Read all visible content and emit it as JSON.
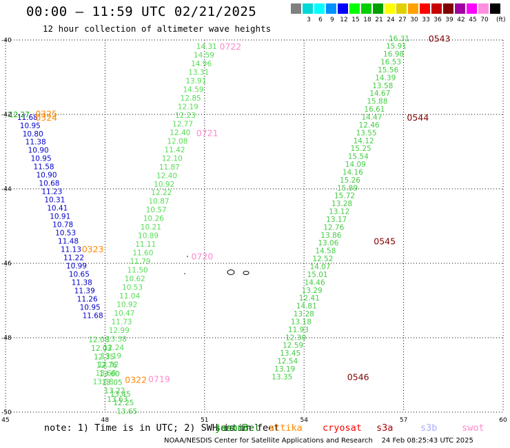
{
  "header": {
    "title": "00:00 – 11:59 UTC 02/21/2025",
    "subtitle": "12 hour collection of altimeter wave heights"
  },
  "color_scale": {
    "unit": "(ft)",
    "bins": [
      {
        "label": "",
        "color": "#808080"
      },
      {
        "label": "3",
        "color": "#00d8d8"
      },
      {
        "label": "6",
        "color": "#00ffff"
      },
      {
        "label": "9",
        "color": "#0090ff"
      },
      {
        "label": "12",
        "color": "#0000ff"
      },
      {
        "label": "15",
        "color": "#00ff00"
      },
      {
        "label": "18",
        "color": "#00d000"
      },
      {
        "label": "21",
        "color": "#00a000"
      },
      {
        "label": "24",
        "color": "#ffff00"
      },
      {
        "label": "27",
        "color": "#e0d000"
      },
      {
        "label": "30",
        "color": "#ffa000"
      },
      {
        "label": "33",
        "color": "#ff0000"
      },
      {
        "label": "36",
        "color": "#c80000"
      },
      {
        "label": "39",
        "color": "#800000"
      },
      {
        "label": "42",
        "color": "#a000a0"
      },
      {
        "label": "45",
        "color": "#ff00ff"
      },
      {
        "label": "70",
        "color": "#ff90e0"
      },
      {
        "label": "",
        "color": "#000000"
      }
    ]
  },
  "map": {
    "lon_ticks": [
      "45",
      "48",
      "51",
      "54",
      "57",
      "60"
    ],
    "lat_ticks": [
      "-40",
      "-42",
      "-44",
      "-46",
      "-48",
      "-50"
    ],
    "lon_range": [
      45,
      60
    ],
    "lat_range": [
      -40,
      -50
    ]
  },
  "tracks": [
    {
      "sat": "altika",
      "color": "#0000cc",
      "dir": "down",
      "start": [
        -42.07,
        45.35
      ],
      "step": [
        0.222,
        0.082
      ],
      "values": [
        "11.68",
        "10.95",
        "10.80",
        "11.38",
        "10.90",
        "10.95",
        "11.58",
        "10.90",
        "10.68",
        "11.23",
        "10.31",
        "10.41",
        "10.91",
        "10.78",
        "10.53",
        "11.48",
        "11.13",
        "11.22",
        "10.99",
        "10.65",
        "11.38",
        "11.39",
        "11.26",
        "10.95",
        "11.68"
      ]
    },
    {
      "sat": "altika",
      "color": "#44cc44",
      "dir": "down",
      "start": [
        -48.05,
        47.5
      ],
      "step": [
        0.228,
        0.08
      ],
      "values": [
        "12.08",
        "12.03",
        "12.35",
        "12.76",
        "13.60",
        "13.05",
        "13.22",
        "13.63"
      ]
    },
    {
      "sat": "altika",
      "color": "#44cc44",
      "dir": "down",
      "start": [
        -49.51,
        48.15
      ],
      "step": [
        0.23,
        0.1
      ],
      "values": [
        "13.45",
        "12.25",
        "13.65"
      ]
    },
    {
      "sat": "sentinel",
      "color": "#00aa00",
      "dir": "up",
      "start": [
        -42.0,
        45.1
      ],
      "step": [
        0,
        0
      ],
      "values": [
        "12.27"
      ]
    },
    {
      "sat": "swot",
      "color": "#55dd55",
      "dir": "up",
      "start": [
        -40.17,
        50.75
      ],
      "step": [
        0.231,
        -0.08
      ],
      "values": [
        "14.31",
        "14.59",
        "14.96",
        "13.31",
        "13.91",
        "14.59",
        "12.85",
        "12.19",
        "12.23",
        "12.77",
        "12.40",
        "12.08",
        "11.42",
        "12.10",
        "11.87",
        "12.40",
        "10.92",
        "12.22",
        "10.87",
        "10.57",
        "10.26",
        "10.21",
        "10.89",
        "11.11",
        "11.60",
        "11.79",
        "11.50",
        "10.62",
        "10.53",
        "11.04",
        "10.92",
        "10.47",
        "11.73",
        "12.99",
        "13.38",
        "12.24",
        "13.19",
        "12.32",
        "13.68",
        "13.58"
      ]
    },
    {
      "sat": "swot",
      "color": "#44cc44",
      "dir": "up",
      "start": [
        -39.95,
        56.55
      ],
      "step": [
        0.2115,
        -0.082
      ],
      "values": [
        "16.31",
        "15.91",
        "16.98",
        "16.53",
        "15.56",
        "14.39",
        "13.58",
        "14.67",
        "15.88",
        "16.61",
        "14.47",
        "12.46",
        "13.55",
        "14.12",
        "15.25",
        "15.54",
        "14.09",
        "14.16",
        "15.26",
        "15.89",
        "15.72",
        "13.28",
        "13.12",
        "13.17",
        "12.76",
        "13.86",
        "13.06",
        "14.58",
        "12.52",
        "14.07",
        "15.01",
        "14.46",
        "13.29",
        "12.41",
        "14.81",
        "13.28",
        "13.18",
        "11.93",
        "12.30",
        "12.59",
        "13.45",
        "12.54",
        "13.19",
        "13.35"
      ]
    }
  ],
  "time_labels": [
    {
      "text": "0722",
      "color": "#ff88cc",
      "lat": -40.17,
      "lon": 51.45
    },
    {
      "text": "0721",
      "color": "#ff88cc",
      "lat": -42.49,
      "lon": 50.75
    },
    {
      "text": "0720",
      "color": "#ff88cc",
      "lat": -45.81,
      "lon": 50.6
    },
    {
      "text": "0719",
      "color": "#ff88cc",
      "lat": -49.1,
      "lon": 49.3
    },
    {
      "text": "0325",
      "color": "#ff8800",
      "lat": -41.97,
      "lon": 45.9
    },
    {
      "text": "0324",
      "color": "#ff8800",
      "lat": -42.07,
      "lon": 45.9
    },
    {
      "text": "0323",
      "color": "#ff8800",
      "lat": -45.61,
      "lon": 47.3
    },
    {
      "text": "0322",
      "color": "#ff8800",
      "lat": -49.12,
      "lon": 48.6
    },
    {
      "text": "0543",
      "color": "#800000",
      "lat": -39.95,
      "lon": 57.75
    },
    {
      "text": "0544",
      "color": "#800000",
      "lat": -42.07,
      "lon": 57.1
    },
    {
      "text": "0545",
      "color": "#800000",
      "lat": -45.4,
      "lon": 56.1
    },
    {
      "text": "0546",
      "color": "#800000",
      "lat": -49.05,
      "lon": 55.3
    }
  ],
  "footer": {
    "note": "note: 1) Time is in UTC; 2) SWH is in feet",
    "satellites": [
      {
        "name": "jason3",
        "color": "#00aa00",
        "dx": 312
      },
      {
        "name": "sentinel",
        "color": "#006600",
        "dx": 312
      },
      {
        "name": "altika",
        "color": "#ff8800",
        "dx": 390
      },
      {
        "name": "cryosat",
        "color": "#ff0000",
        "dx": 468
      },
      {
        "name": "s3a",
        "color": "#aa0000",
        "dx": 546
      },
      {
        "name": "s3b",
        "color": "#aaaaff",
        "dx": 610
      },
      {
        "name": "swot",
        "color": "#ff88cc",
        "dx": 670
      }
    ],
    "credit": "NOAA/NESDIS Center for Satellite Applications and Research    24 Feb 08:25:43 UTC 2025"
  }
}
